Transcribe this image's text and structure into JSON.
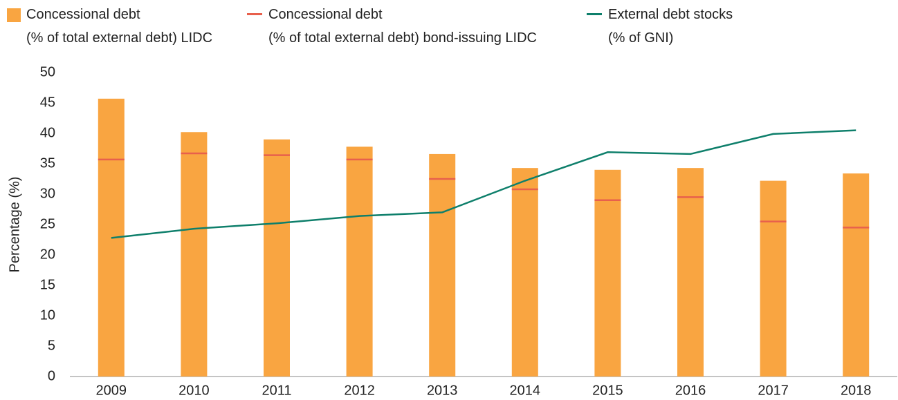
{
  "chart_data": {
    "type": "bar",
    "y_label": "Percentage (%)",
    "categories": [
      "2009",
      "2010",
      "2011",
      "2012",
      "2013",
      "2014",
      "2015",
      "2016",
      "2017",
      "2018"
    ],
    "ylim": [
      0,
      50
    ],
    "yticks": [
      0,
      5,
      10,
      15,
      20,
      25,
      30,
      35,
      40,
      45,
      50
    ],
    "grid": false,
    "series": [
      {
        "name": "Concessional debt\n(% of total external debt) LIDC",
        "type": "bar",
        "color": "#f9a541",
        "values": [
          45.7,
          40.2,
          39.0,
          37.8,
          36.6,
          34.3,
          34.0,
          34.3,
          32.2,
          33.4
        ]
      },
      {
        "name": "Concessional debt\n(% of total external debt) bond-issuing LIDC",
        "type": "marker",
        "color": "#e8604c",
        "values": [
          35.7,
          36.7,
          36.4,
          35.7,
          32.5,
          30.8,
          29.0,
          29.5,
          25.5,
          24.5
        ]
      },
      {
        "name": "External debt stocks\n(% of GNI)",
        "type": "line",
        "color": "#0e7f6b",
        "values": [
          22.8,
          24.3,
          25.2,
          26.4,
          27.0,
          32.2,
          36.9,
          36.6,
          39.9,
          40.5
        ]
      }
    ]
  }
}
